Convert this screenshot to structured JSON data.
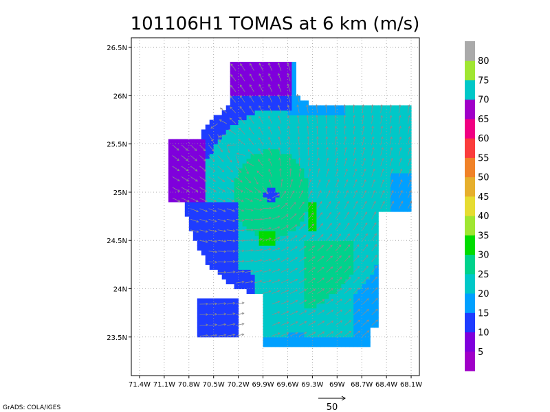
{
  "chart_data": {
    "type": "heatmap",
    "title": "101106H1 TOMAS at 6 km (m/s)",
    "xlabel": "",
    "ylabel": "",
    "x_tick_labels": [
      "71.4W",
      "71.1W",
      "70.8W",
      "70.5W",
      "70.2W",
      "69.9W",
      "69.6W",
      "69.3W",
      "69W",
      "68.7W",
      "68.4W",
      "68.1W"
    ],
    "x_tick_values": [
      -71.4,
      -71.1,
      -70.8,
      -70.5,
      -70.2,
      -69.9,
      -69.6,
      -69.3,
      -69.0,
      -68.7,
      -68.4,
      -68.1
    ],
    "y_tick_labels": [
      "23.5N",
      "24N",
      "24.5N",
      "25N",
      "25.5N",
      "26N",
      "26.5N"
    ],
    "y_tick_values": [
      23.5,
      24.0,
      24.5,
      25.0,
      25.5,
      26.0,
      26.5
    ],
    "xlim": [
      -71.5,
      -68.0
    ],
    "ylim": [
      23.1,
      26.6
    ],
    "grid": true,
    "colorbar": {
      "levels": [
        "5",
        "10",
        "15",
        "20",
        "25",
        "30",
        "35",
        "40",
        "45",
        "50",
        "55",
        "60",
        "65",
        "70",
        "75",
        "80"
      ],
      "colors": [
        "#a000c8",
        "#7f00dc",
        "#1e3cff",
        "#00a0ff",
        "#00c8c8",
        "#00d28c",
        "#00dc00",
        "#a0e632",
        "#e6dc32",
        "#e6af2d",
        "#f08228",
        "#fa3c3c",
        "#f00082",
        "#a000c8",
        "#00c8c8",
        "#a0e632",
        "#aaaaaa"
      ]
    },
    "storm_center": {
      "lon": -69.8,
      "lat": 24.98
    },
    "reference_vector": {
      "label": "50",
      "speed": 50
    },
    "center_wind_speed": 10,
    "max_wind_speed": 35
  },
  "footer": {
    "credit": "GrADS: COLA/IGES"
  }
}
